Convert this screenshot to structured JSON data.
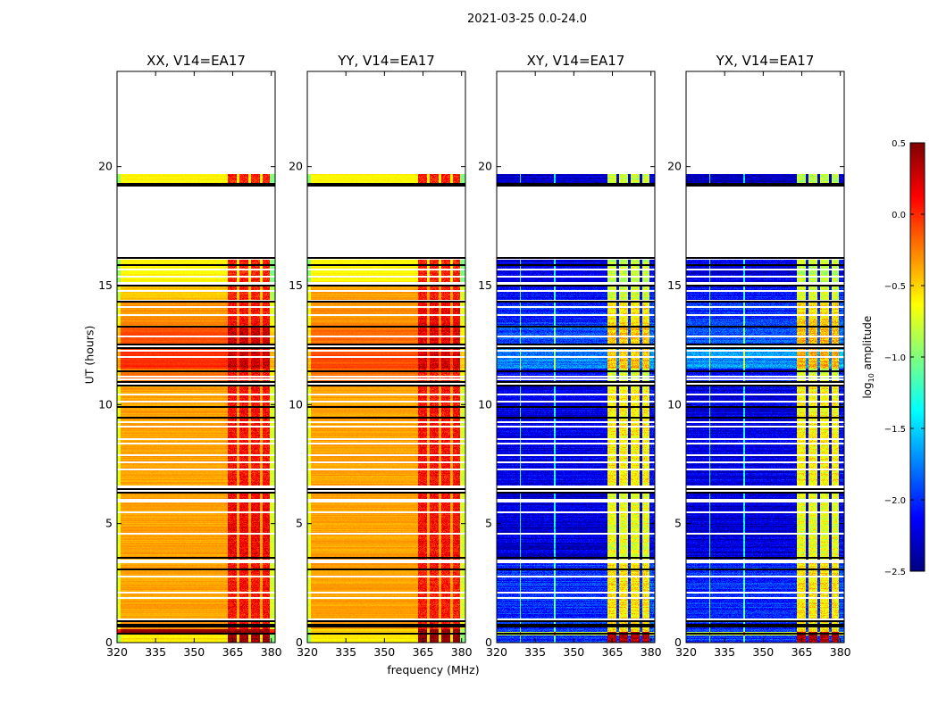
{
  "chart_data": {
    "type": "heatmap",
    "title": "2021-03-25 0.0-24.0",
    "xlabel": "frequency (MHz)",
    "ylabel": "UT (hours)",
    "xlim": [
      320,
      381.5
    ],
    "ylim": [
      0,
      24
    ],
    "xticks": [
      320,
      335,
      350,
      365,
      380
    ],
    "yticks": [
      0,
      5,
      10,
      15,
      20
    ],
    "colormap": "jet",
    "colorbar": {
      "label": "log10 amplitude",
      "label_main": "log",
      "label_sub": "10",
      "label_rest": " amplitude",
      "range": [
        -2.5,
        0.5
      ],
      "ticks": [
        "0.5",
        "0.0",
        "−0.5",
        "−1.0",
        "−1.5",
        "−2.0",
        "−2.5"
      ],
      "tick_values": [
        0.5,
        0.0,
        -0.5,
        -1.0,
        -1.5,
        -2.0,
        -2.5
      ]
    },
    "flagged_time_ranges_hours": [
      [
        16.2,
        19.3
      ],
      [
        19.7,
        24.0
      ]
    ],
    "black_line_times_hours": [
      0.4,
      0.7,
      0.8,
      0.95,
      3.1,
      3.6,
      6.35,
      6.5,
      9.5,
      9.95,
      10.85,
      11.0,
      11.45,
      12.4,
      12.55,
      13.3,
      14.35,
      15.05,
      15.9,
      16.2,
      19.3
    ],
    "white_gap_times_hours": [
      1.0,
      1.9,
      2.15,
      2.8,
      3.4,
      3.5,
      4.6,
      5.5,
      5.95,
      6.05,
      6.6,
      7.3,
      7.6,
      7.9,
      8.4,
      8.6,
      9.1,
      9.3,
      10.15,
      10.45,
      11.1,
      11.2,
      12.05,
      12.3,
      12.9,
      13.8,
      14.15,
      14.8,
      15.15,
      15.4,
      15.7
    ],
    "rfi_band_MHz": [
      [
        363,
        366.5
      ],
      [
        367.5,
        371
      ],
      [
        372,
        375.5
      ],
      [
        376.5,
        379.5
      ]
    ],
    "series": [
      {
        "name": "XX, V14=EA17",
        "typical_log10_amp": -0.35,
        "band_log10_amp": 0.15,
        "time_profile": [
          {
            "t": [
              0.0,
              0.35
            ],
            "amp": -0.55,
            "band": 0.45
          },
          {
            "t": [
              0.35,
              0.55
            ],
            "amp": 0.45,
            "band": 0.45
          },
          {
            "t": [
              0.55,
              3.5
            ],
            "amp": -0.35,
            "band": 0.1
          },
          {
            "t": [
              3.5,
              6.3
            ],
            "amp": -0.35,
            "band": 0.15
          },
          {
            "t": [
              6.6,
              10.8
            ],
            "amp": -0.35,
            "band": 0.1
          },
          {
            "t": [
              11.0,
              11.5
            ],
            "amp": -0.2,
            "band": 0.1
          },
          {
            "t": [
              11.5,
              12.4
            ],
            "amp": 0.0,
            "band": 0.3
          },
          {
            "t": [
              12.55,
              13.3
            ],
            "amp": -0.1,
            "band": 0.3
          },
          {
            "t": [
              13.3,
              14.3
            ],
            "amp": -0.3,
            "band": 0.1
          },
          {
            "t": [
              14.4,
              15.0
            ],
            "amp": -0.45,
            "band": 0.05
          },
          {
            "t": [
              15.1,
              16.1
            ],
            "amp": -0.6,
            "band": 0.05
          },
          {
            "t": [
              19.3,
              19.7
            ],
            "amp": -0.6,
            "band": 0.05
          }
        ]
      },
      {
        "name": "YY, V14=EA17",
        "typical_log10_amp": -0.35,
        "band_log10_amp": 0.15,
        "time_profile": [
          {
            "t": [
              0.0,
              0.35
            ],
            "amp": -0.6,
            "band": 0.45
          },
          {
            "t": [
              0.35,
              0.55
            ],
            "amp": -0.5,
            "band": 0.45
          },
          {
            "t": [
              0.55,
              3.5
            ],
            "amp": -0.35,
            "band": 0.05
          },
          {
            "t": [
              3.5,
              6.3
            ],
            "amp": -0.35,
            "band": 0.1
          },
          {
            "t": [
              6.6,
              10.8
            ],
            "amp": -0.35,
            "band": 0.1
          },
          {
            "t": [
              11.0,
              11.5
            ],
            "amp": -0.2,
            "band": 0.05
          },
          {
            "t": [
              11.5,
              12.4
            ],
            "amp": -0.1,
            "band": 0.25
          },
          {
            "t": [
              12.55,
              13.3
            ],
            "amp": -0.2,
            "band": 0.2
          },
          {
            "t": [
              13.3,
              14.3
            ],
            "amp": -0.3,
            "band": 0.15
          },
          {
            "t": [
              14.4,
              15.0
            ],
            "amp": -0.35,
            "band": 0.05
          },
          {
            "t": [
              15.1,
              16.1
            ],
            "amp": -0.6,
            "band": 0.05
          },
          {
            "t": [
              19.3,
              19.7
            ],
            "amp": -0.6,
            "band": 0.05
          }
        ]
      },
      {
        "name": "XY, V14=EA17",
        "typical_log10_amp": -2.2,
        "band_log10_amp": -0.7,
        "time_profile": [
          {
            "t": [
              0.0,
              0.3
            ],
            "amp": -2.0,
            "band": 0.35
          },
          {
            "t": [
              0.3,
              0.45
            ],
            "amp": -0.8,
            "band": 0.35
          },
          {
            "t": [
              0.45,
              3.5
            ],
            "amp": -2.0,
            "band": -0.55
          },
          {
            "t": [
              3.5,
              6.3
            ],
            "amp": -2.25,
            "band": -0.7
          },
          {
            "t": [
              6.6,
              10.8
            ],
            "amp": -2.2,
            "band": -0.6
          },
          {
            "t": [
              11.0,
              11.5
            ],
            "amp": -2.1,
            "band": -0.75
          },
          {
            "t": [
              11.5,
              12.4
            ],
            "amp": -1.7,
            "band": -0.4
          },
          {
            "t": [
              12.55,
              13.3
            ],
            "amp": -1.9,
            "band": -0.45
          },
          {
            "t": [
              13.3,
              14.3
            ],
            "amp": -2.0,
            "band": -0.55
          },
          {
            "t": [
              14.4,
              15.0
            ],
            "amp": -2.1,
            "band": -0.75
          },
          {
            "t": [
              15.1,
              16.1
            ],
            "amp": -2.2,
            "band": -0.8
          },
          {
            "t": [
              19.3,
              19.7
            ],
            "amp": -2.3,
            "band": -0.8
          }
        ]
      },
      {
        "name": "YX, V14=EA17",
        "typical_log10_amp": -2.2,
        "band_log10_amp": -0.7,
        "time_profile": [
          {
            "t": [
              0.0,
              0.3
            ],
            "amp": -2.0,
            "band": 0.35
          },
          {
            "t": [
              0.3,
              0.45
            ],
            "amp": -0.8,
            "band": 0.35
          },
          {
            "t": [
              0.45,
              3.5
            ],
            "amp": -2.0,
            "band": -0.55
          },
          {
            "t": [
              3.5,
              6.3
            ],
            "amp": -2.25,
            "band": -0.7
          },
          {
            "t": [
              6.6,
              10.8
            ],
            "amp": -2.2,
            "band": -0.6
          },
          {
            "t": [
              11.0,
              11.5
            ],
            "amp": -2.1,
            "band": -0.75
          },
          {
            "t": [
              11.5,
              12.4
            ],
            "amp": -1.7,
            "band": -0.4
          },
          {
            "t": [
              12.55,
              13.3
            ],
            "amp": -1.9,
            "band": -0.45
          },
          {
            "t": [
              13.3,
              14.3
            ],
            "amp": -2.0,
            "band": -0.55
          },
          {
            "t": [
              14.4,
              15.0
            ],
            "amp": -2.1,
            "band": -0.75
          },
          {
            "t": [
              15.1,
              16.1
            ],
            "amp": -2.2,
            "band": -0.8
          },
          {
            "t": [
              19.3,
              19.7
            ],
            "amp": -2.3,
            "band": -0.8
          }
        ]
      }
    ]
  }
}
